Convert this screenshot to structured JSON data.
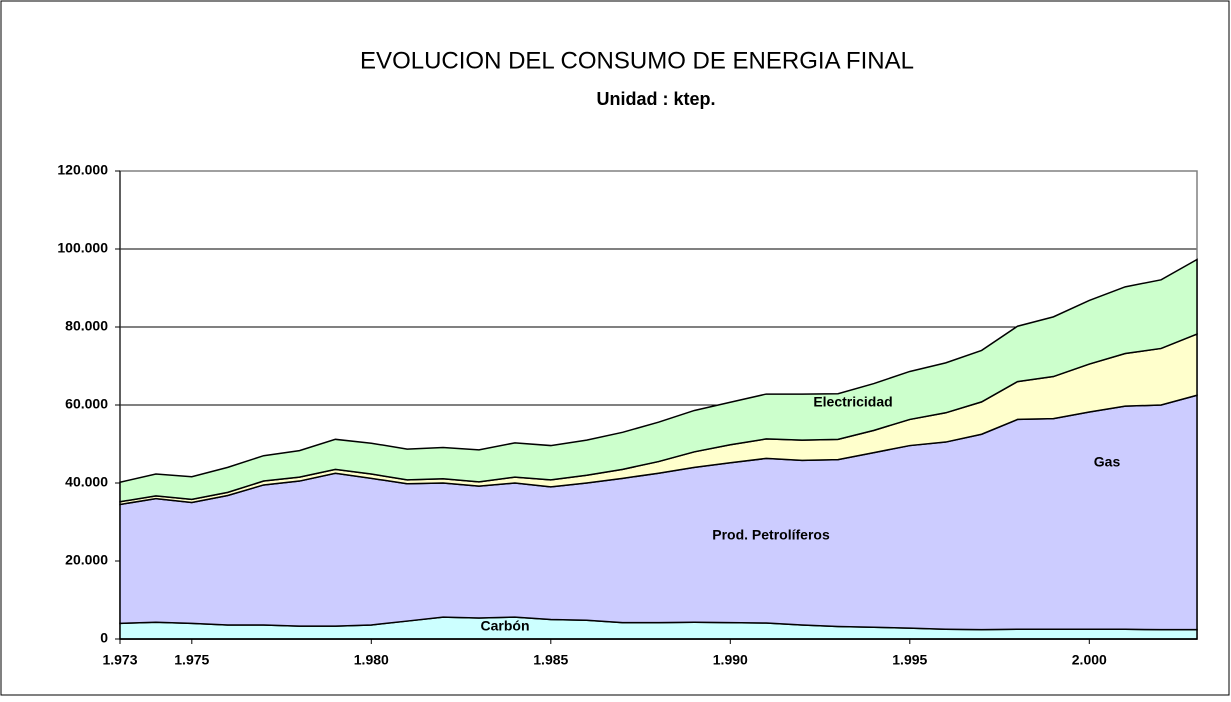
{
  "chart_data": {
    "type": "stacked-area",
    "title": "EVOLUCION DEL CONSUMO DE ENERGIA FINAL",
    "subtitle": "Unidad : ktep.",
    "x": [
      1973,
      1974,
      1975,
      1976,
      1977,
      1978,
      1979,
      1980,
      1981,
      1982,
      1983,
      1984,
      1985,
      1986,
      1987,
      1988,
      1989,
      1990,
      1991,
      1992,
      1993,
      1994,
      1995,
      1996,
      1997,
      1998,
      1999,
      2000,
      2001,
      2002,
      2003
    ],
    "series": [
      {
        "name": "Carbón",
        "color": "#ccffff",
        "values": [
          4000,
          4300,
          4000,
          3600,
          3600,
          3300,
          3300,
          3600,
          4600,
          5600,
          5400,
          5600,
          5000,
          4800,
          4200,
          4200,
          4300,
          4200,
          4100,
          3600,
          3200,
          3000,
          2800,
          2500,
          2400,
          2500,
          2500,
          2500,
          2500,
          2400,
          2400
        ]
      },
      {
        "name": "Prod. Petrolíferos",
        "color": "#ccccff",
        "values": [
          30500,
          31700,
          31000,
          33200,
          35900,
          37200,
          39200,
          37600,
          35200,
          34400,
          33800,
          34400,
          34000,
          35200,
          37000,
          38300,
          39700,
          41000,
          42200,
          42200,
          42800,
          44800,
          46800,
          48000,
          50100,
          53800,
          54000,
          55700,
          57200,
          57600,
          60100
        ]
      },
      {
        "name": "Gas",
        "color": "#ffffcc",
        "values": [
          700,
          700,
          800,
          800,
          1000,
          1000,
          1000,
          1100,
          1000,
          1100,
          1100,
          1500,
          1800,
          2000,
          2300,
          3000,
          4000,
          4600,
          5000,
          5200,
          5200,
          5700,
          6700,
          7500,
          8300,
          9700,
          10800,
          12300,
          13500,
          14500,
          15700
        ]
      },
      {
        "name": "Electricidad",
        "color": "#ccffcc",
        "values": [
          5000,
          5600,
          5800,
          6400,
          6500,
          6800,
          7700,
          7900,
          7900,
          8000,
          8200,
          8800,
          8800,
          9000,
          9500,
          10100,
          10600,
          10900,
          11500,
          11800,
          11700,
          12000,
          12300,
          12800,
          13200,
          14200,
          15300,
          16300,
          17100,
          17600,
          19100
        ]
      }
    ],
    "xlim": [
      1973,
      2003
    ],
    "xticks": [
      {
        "value": 1973,
        "label": "1.973"
      },
      {
        "value": 1975,
        "label": "1.975"
      },
      {
        "value": 1980,
        "label": "1.980"
      },
      {
        "value": 1985,
        "label": "1.985"
      },
      {
        "value": 1990,
        "label": "1.990"
      },
      {
        "value": 1995,
        "label": "1.995"
      },
      {
        "value": 2000,
        "label": "2.000"
      }
    ],
    "ylim": [
      0,
      120000
    ],
    "yticks": [
      0,
      {
        "value": 20000,
        "label": "20.000"
      },
      {
        "value": 40000,
        "label": "40.000"
      },
      {
        "value": 60000,
        "label": "60.000"
      },
      {
        "value": 80000,
        "label": "80.000"
      },
      {
        "value": 100000,
        "label": "100.000"
      },
      {
        "value": 120000,
        "label": "120.000"
      }
    ],
    "grid": true
  }
}
